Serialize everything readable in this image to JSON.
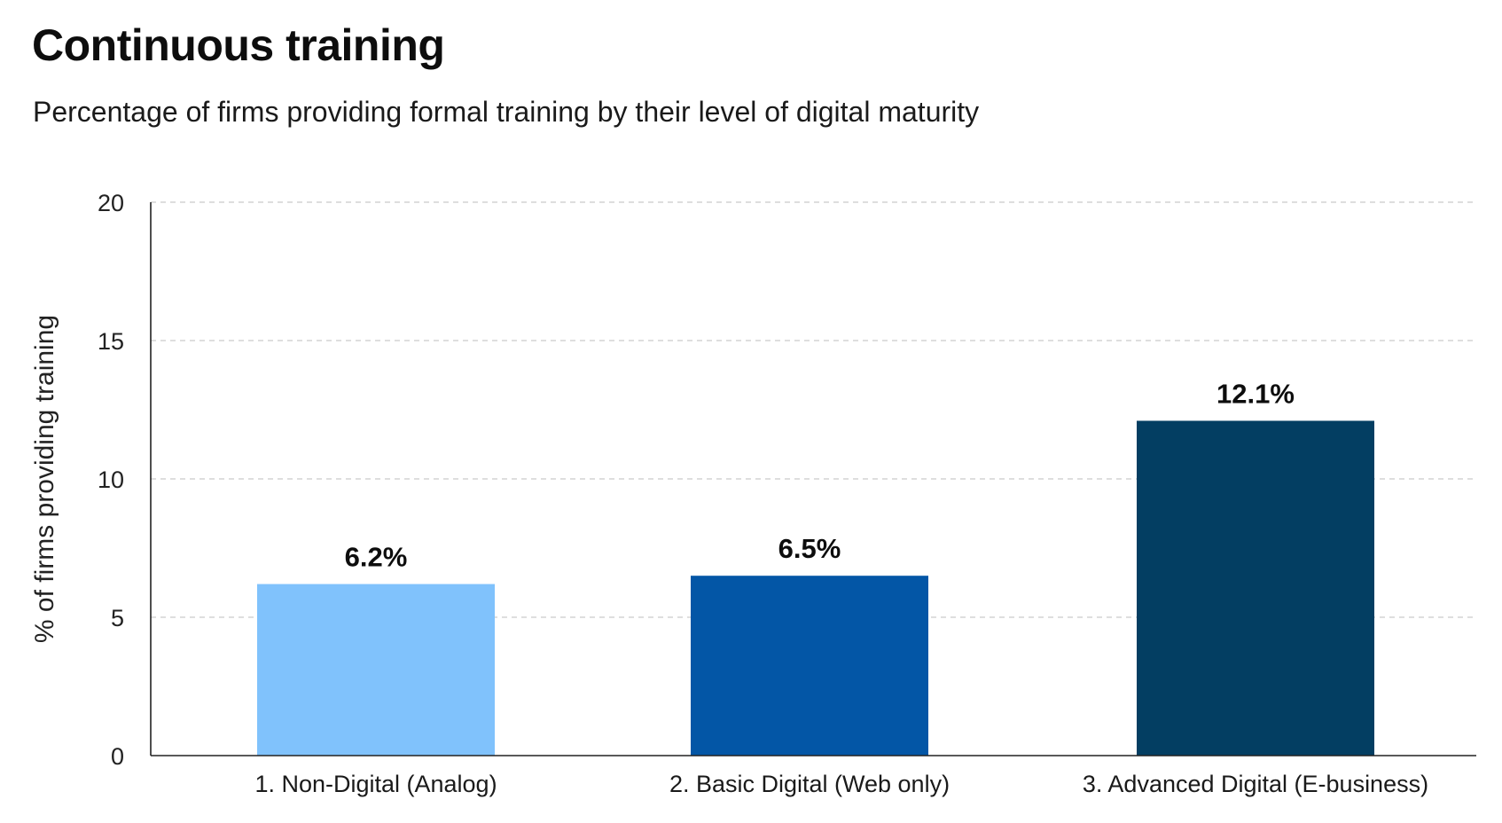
{
  "title": "Continuous training",
  "subtitle": "Percentage of firms providing formal training by their level of digital maturity",
  "chart_data": {
    "type": "bar",
    "title": "Continuous training",
    "subtitle": "Percentage of firms providing formal training by their level of digital maturity",
    "xlabel": "",
    "ylabel": "% of firms providing training",
    "categories": [
      "1. Non-Digital (Analog)",
      "2. Basic Digital (Web only)",
      "3. Advanced Digital (E-business)"
    ],
    "values": [
      6.2,
      6.5,
      12.1
    ],
    "data_labels": [
      "6.2%",
      "6.5%",
      "12.1%"
    ],
    "colors": [
      "#80c2fc",
      "#0356a6",
      "#033e62"
    ],
    "ylim": [
      0,
      20
    ],
    "yticks": [
      0,
      5,
      10,
      15,
      20
    ],
    "grid": true,
    "grid_style": "dashed horizontal",
    "legend": "none"
  }
}
